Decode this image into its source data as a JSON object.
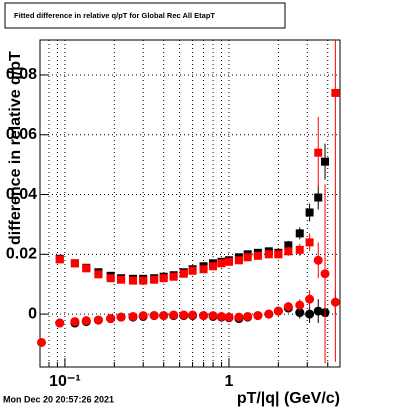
{
  "chart_data": {
    "type": "scatter",
    "title": "Fitted difference in relative q/pT for Global Rec All EtapT",
    "x_label": "pT/|q| (GeV/c)",
    "y_label": "difference in relative q/pT",
    "timestamp": "Mon Dec 20 20:57:26 2021",
    "x": [
      0.072,
      0.093,
      0.115,
      0.135,
      0.16,
      0.19,
      0.22,
      0.26,
      0.3,
      0.35,
      0.4,
      0.46,
      0.53,
      0.6,
      0.7,
      0.8,
      0.9,
      1.0,
      1.15,
      1.3,
      1.5,
      1.75,
      2.0,
      2.3,
      2.7,
      3.1,
      3.5,
      3.85,
      4.45
    ],
    "series": [
      {
        "name": "black-mean",
        "color": "#000000",
        "marker": "square",
        "values": [
          null,
          0.0185,
          0.017,
          0.0155,
          0.014,
          0.0128,
          0.012,
          0.0118,
          0.0118,
          0.012,
          0.0125,
          0.013,
          0.014,
          0.015,
          0.016,
          0.017,
          0.0175,
          0.018,
          0.019,
          0.02,
          0.0205,
          0.021,
          0.0205,
          0.023,
          0.027,
          0.034,
          0.039,
          0.051,
          null
        ],
        "errors": [
          null,
          0.0006,
          0.0005,
          0.0005,
          0.0005,
          0.0005,
          0.0005,
          0.0005,
          0.0005,
          0.0005,
          0.0005,
          0.0005,
          0.0005,
          0.0005,
          0.0005,
          0.0005,
          0.0005,
          0.0005,
          0.0006,
          0.0007,
          0.0008,
          0.001,
          0.0012,
          0.0015,
          0.002,
          0.003,
          0.004,
          0.006,
          null
        ]
      },
      {
        "name": "red-mean",
        "color": "#ff0000",
        "marker": "square",
        "values": [
          null,
          0.0183,
          0.017,
          0.0153,
          0.0133,
          0.012,
          0.0115,
          0.0112,
          0.0112,
          0.0115,
          0.012,
          0.0125,
          0.0135,
          0.0145,
          0.015,
          0.016,
          0.017,
          0.0175,
          0.018,
          0.019,
          0.0195,
          0.02,
          0.02,
          0.021,
          0.0215,
          0.024,
          0.054,
          null,
          0.074
        ],
        "errors": [
          null,
          0.0006,
          0.0005,
          0.0005,
          0.0005,
          0.0005,
          0.0005,
          0.0005,
          0.0005,
          0.0005,
          0.0005,
          0.0005,
          0.0005,
          0.0005,
          0.0005,
          0.0005,
          0.0005,
          0.0005,
          0.0006,
          0.0007,
          0.0008,
          0.001,
          0.0012,
          0.0015,
          0.002,
          0.003,
          0.012,
          null,
          0.09
        ]
      },
      {
        "name": "black-sigma",
        "color": "#000000",
        "marker": "circle",
        "values": [
          null,
          -0.003,
          -0.003,
          -0.0025,
          -0.002,
          -0.0015,
          -0.001,
          -0.001,
          -0.0008,
          -0.0005,
          -0.0005,
          -0.0005,
          -0.0005,
          -0.0005,
          -0.0005,
          -0.0008,
          -0.001,
          -0.0012,
          -0.0015,
          -0.001,
          -0.0005,
          0,
          0.001,
          0.002,
          0.0005,
          0,
          0.001,
          0.0005,
          null
        ],
        "errors": [
          null,
          0.0005,
          0.0005,
          0.0005,
          0.0005,
          0.0005,
          0.0005,
          0.0005,
          0.0005,
          0.0005,
          0.0005,
          0.0005,
          0.0005,
          0.0005,
          0.0005,
          0.0005,
          0.0005,
          0.0005,
          0.0006,
          0.0007,
          0.0008,
          0.001,
          0.0012,
          0.0015,
          0.002,
          0.003,
          0.004,
          0.005,
          null
        ]
      },
      {
        "name": "red-sigma",
        "color": "#ff0000",
        "marker": "circle",
        "values": [
          -0.0095,
          -0.003,
          -0.0025,
          -0.0022,
          -0.002,
          -0.0015,
          -0.001,
          -0.0008,
          -0.0005,
          -0.0005,
          -0.0005,
          -0.0003,
          -0.0003,
          -0.0003,
          -0.0005,
          -0.0005,
          -0.0008,
          -0.001,
          -0.001,
          -0.0008,
          -0.0005,
          0,
          0.001,
          0.0025,
          0.003,
          0.005,
          0.018,
          0.0135,
          0.004
        ],
        "errors": [
          0.0008,
          0.0005,
          0.0005,
          0.0005,
          0.0005,
          0.0005,
          0.0005,
          0.0005,
          0.0005,
          0.0005,
          0.0005,
          0.0005,
          0.0005,
          0.0005,
          0.0005,
          0.0005,
          0.0005,
          0.0005,
          0.0006,
          0.0007,
          0.0008,
          0.001,
          0.0012,
          0.0015,
          0.002,
          0.003,
          0.006,
          0.03,
          0.004
        ]
      }
    ],
    "xlim": [
      0.0705,
      4.75
    ],
    "x_log": true,
    "xticks": [
      {
        "value": 0.1,
        "label": "10⁻¹"
      },
      1
    ],
    "xminorticks": [
      0.08,
      0.09,
      0.2,
      0.3,
      0.4,
      0.5,
      0.6,
      0.7,
      0.8,
      0.9,
      2,
      3,
      4
    ],
    "ylim": [
      -0.0177,
      0.0917
    ],
    "yticks": [
      0,
      0.02,
      0.04,
      0.06,
      0.08
    ],
    "grid": true
  }
}
